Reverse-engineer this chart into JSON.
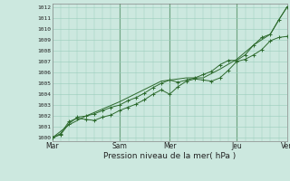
{
  "bg_color": "#cce8df",
  "grid_color": "#99ccbb",
  "line_color": "#2d6a2d",
  "marker_color": "#2d6a2d",
  "ylabel_min": 1000,
  "ylabel_max": 1012,
  "xlabel": "Pression niveau de la mer( hPa )",
  "xtick_labels": [
    "Mar",
    "Sam",
    "Mer",
    "Jeu",
    "Ven"
  ],
  "xtick_positions": [
    0,
    4,
    7,
    11,
    14
  ],
  "line1_x": [
    0,
    0.5,
    1.0,
    1.5,
    2.0,
    2.5,
    3.0,
    3.5,
    4.0,
    4.5,
    5.0,
    5.5,
    6.0,
    6.5,
    7.0,
    7.5,
    8.0,
    8.5,
    9.0,
    9.5,
    10.0,
    10.5,
    11.0,
    11.5,
    12.0,
    12.5,
    13.0,
    13.5,
    14.0
  ],
  "line1_y": [
    1000.0,
    1000.4,
    1001.5,
    1001.8,
    1001.7,
    1001.6,
    1001.9,
    1002.1,
    1002.5,
    1002.8,
    1003.1,
    1003.5,
    1004.0,
    1004.4,
    1004.0,
    1004.7,
    1005.2,
    1005.4,
    1005.3,
    1005.2,
    1005.5,
    1006.2,
    1007.0,
    1007.2,
    1007.6,
    1008.1,
    1008.9,
    1009.2,
    1009.3
  ],
  "line2_x": [
    0,
    0.5,
    1.0,
    1.5,
    2.0,
    2.5,
    3.0,
    3.5,
    4.0,
    4.5,
    5.0,
    5.5,
    6.0,
    6.5,
    7.0,
    7.5,
    8.0,
    8.5,
    9.0,
    9.5,
    10.0,
    10.5,
    11.0,
    11.5,
    12.0,
    12.5,
    13.0,
    13.5,
    14.0
  ],
  "line2_y": [
    1000.0,
    1000.3,
    1001.3,
    1001.9,
    1002.0,
    1002.2,
    1002.5,
    1002.8,
    1003.0,
    1003.4,
    1003.7,
    1004.1,
    1004.6,
    1005.0,
    1005.3,
    1005.1,
    1005.3,
    1005.5,
    1005.8,
    1006.1,
    1006.7,
    1007.1,
    1007.1,
    1007.6,
    1008.5,
    1009.2,
    1009.5,
    1010.8,
    1012.0
  ],
  "line3_x": [
    0,
    1.0,
    2.0,
    4.0,
    6.5,
    8.0,
    9.0,
    10.0,
    11.0,
    12.0,
    13.0,
    13.5,
    14.0
  ],
  "line3_y": [
    1000.0,
    1001.2,
    1002.0,
    1003.3,
    1005.2,
    1005.5,
    1005.5,
    1006.3,
    1007.2,
    1008.5,
    1009.5,
    1010.8,
    1012.0
  ]
}
